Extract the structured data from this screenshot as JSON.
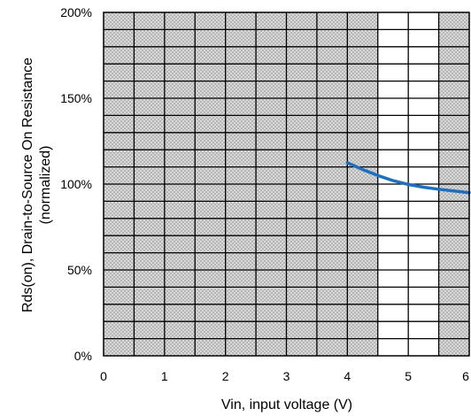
{
  "chart_data": {
    "type": "line",
    "xlabel": "Vin, input voltage (V)",
    "ylabel_lines": [
      "Rds(on), Drain-to-Source On Resistance",
      "(normalized)"
    ],
    "xlim": [
      0,
      6
    ],
    "ylim": [
      0,
      200
    ],
    "x_ticks": [
      0,
      1,
      2,
      3,
      4,
      5,
      6
    ],
    "y_ticks": [
      0,
      50,
      100,
      150,
      200
    ],
    "y_tick_labels": [
      "0%",
      "50%",
      "100%",
      "150%",
      "200%"
    ],
    "y_gridline_step": 10,
    "x_gridline_step": 0.5,
    "shaded_regions": [
      {
        "x": [
          0,
          4.5
        ],
        "meaning": "out-of-range region"
      },
      {
        "x": [
          5.5,
          6
        ],
        "meaning": "out-of-range region"
      }
    ],
    "grid": true,
    "colors": {
      "series": "#1f6fbf",
      "shade": "#c8c8c8",
      "grid": "#000000"
    },
    "series": [
      {
        "x": [
          4.0,
          4.25,
          4.5,
          4.75,
          5.0,
          5.25,
          5.5,
          5.75,
          6.0
        ],
        "values": [
          112.5,
          108.5,
          105.0,
          102.0,
          99.8,
          98.2,
          97.0,
          96.0,
          95.0
        ]
      }
    ]
  }
}
